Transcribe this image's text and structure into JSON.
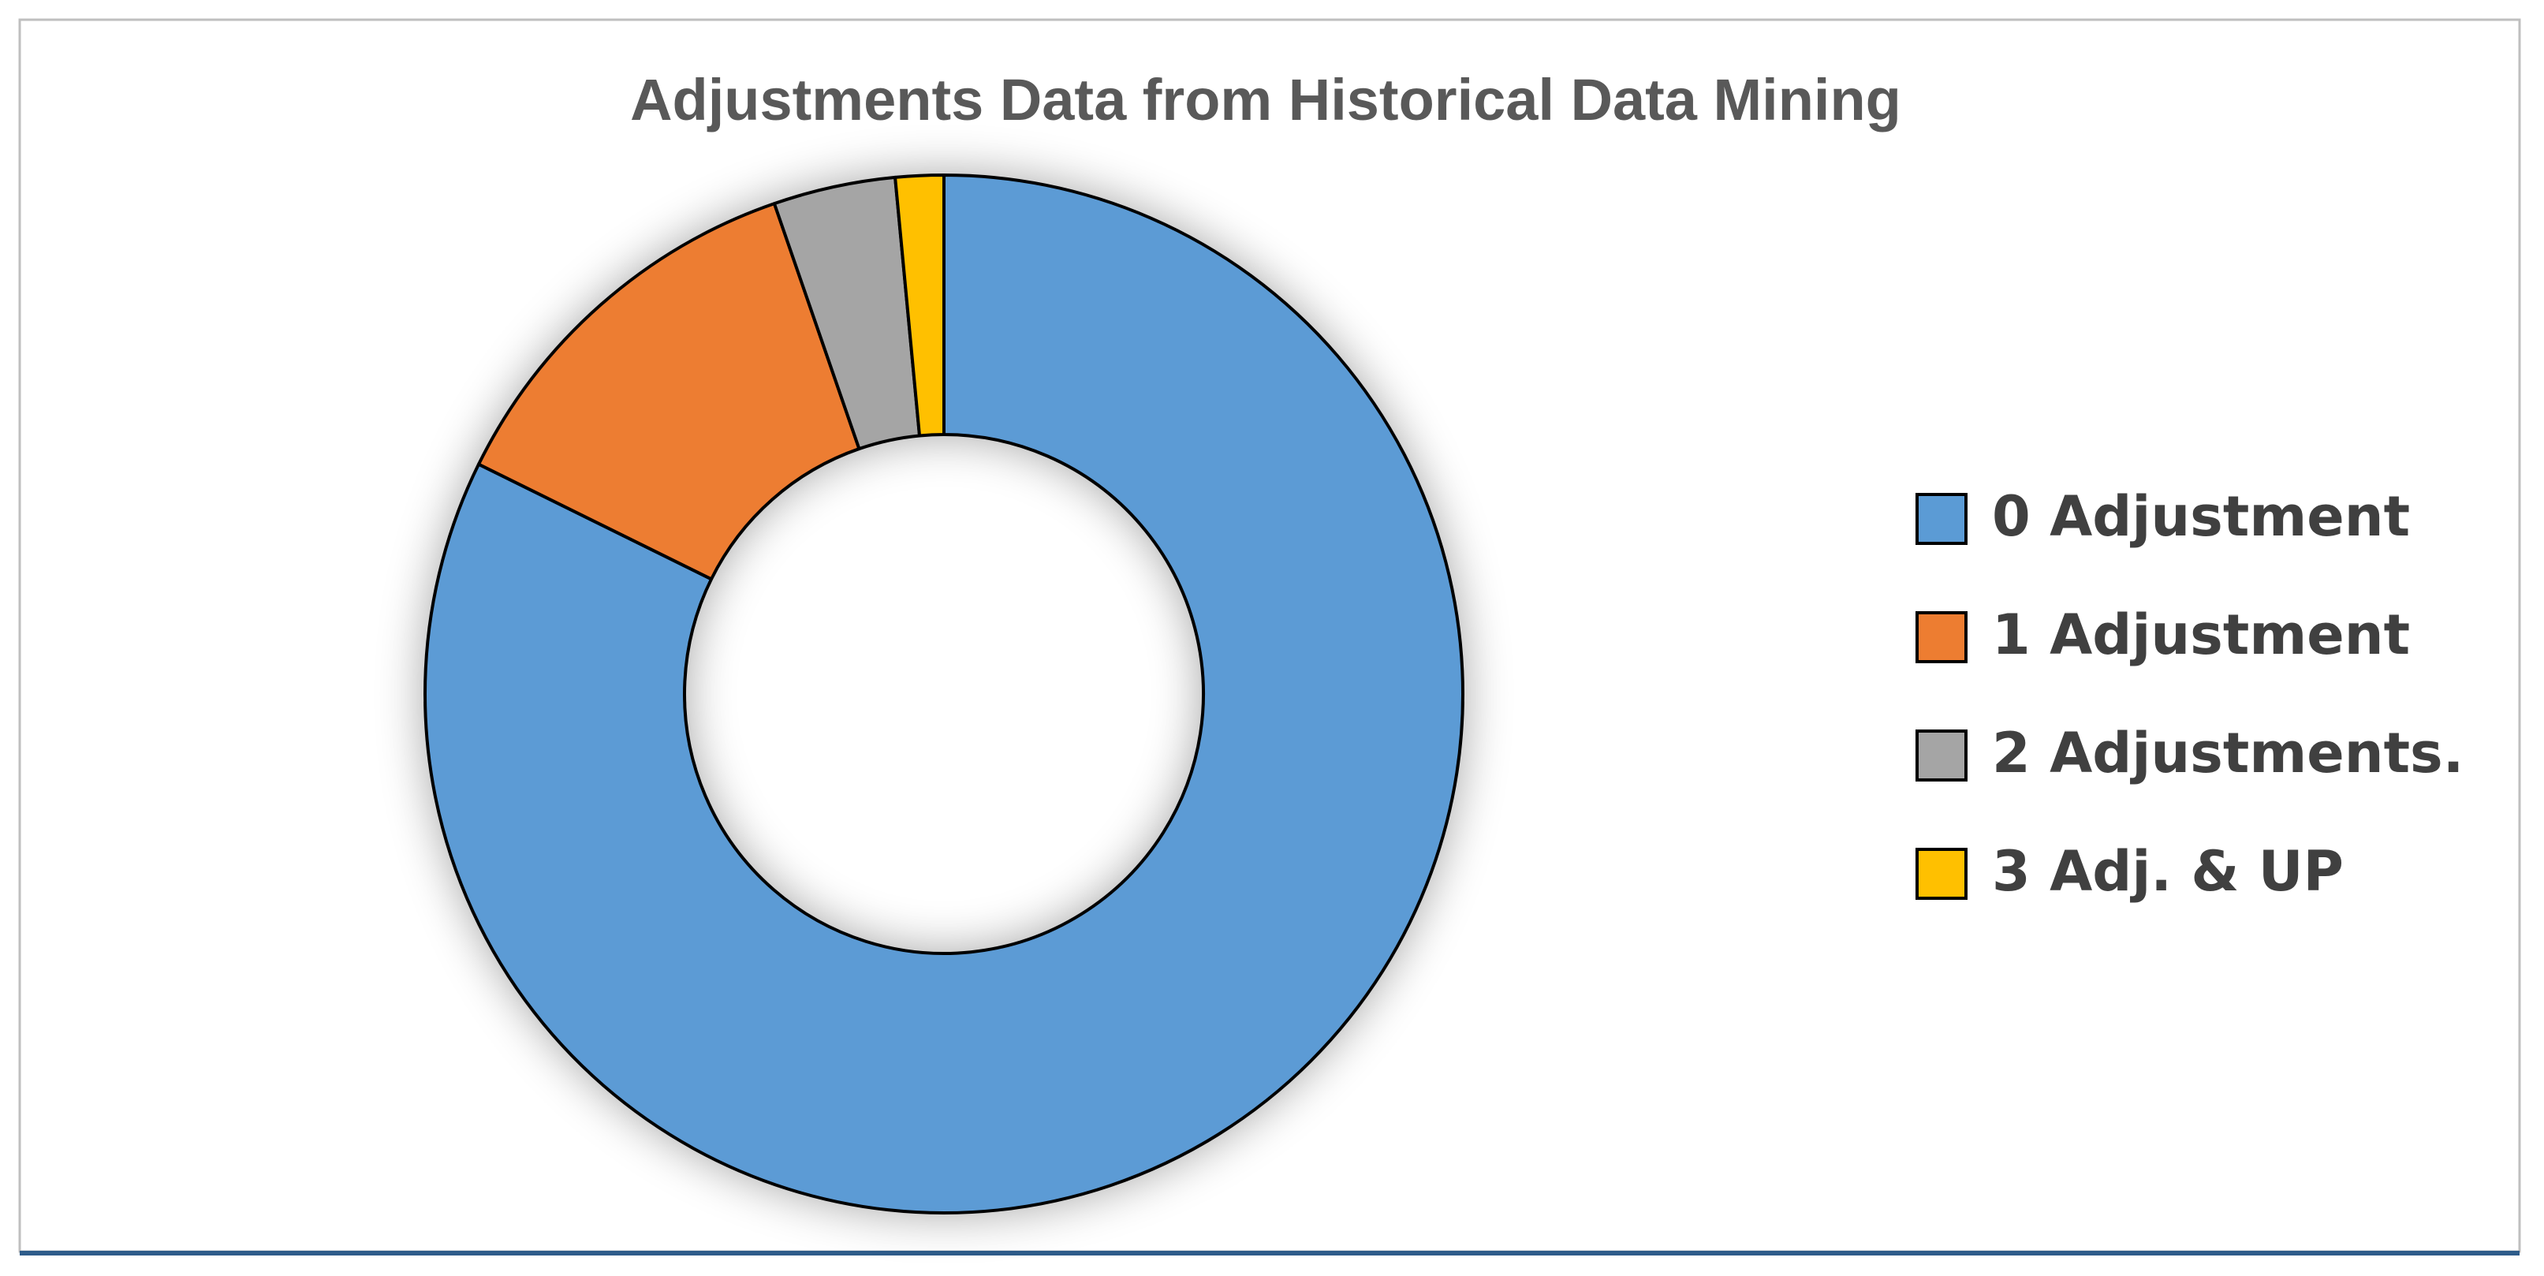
{
  "chart_data": {
    "type": "donut",
    "title": "Adjustments Data from Historical Data Mining",
    "categories": [
      "0 Adjustment",
      "1 Adjustment",
      "2 Adjustments.",
      "3 Adj. & UP"
    ],
    "values": [
      82.3,
      12.4,
      3.8,
      1.5
    ],
    "colors": [
      "#5b9bd5",
      "#ed7d31",
      "#a5a5a5",
      "#ffc000"
    ],
    "legend": "right"
  }
}
